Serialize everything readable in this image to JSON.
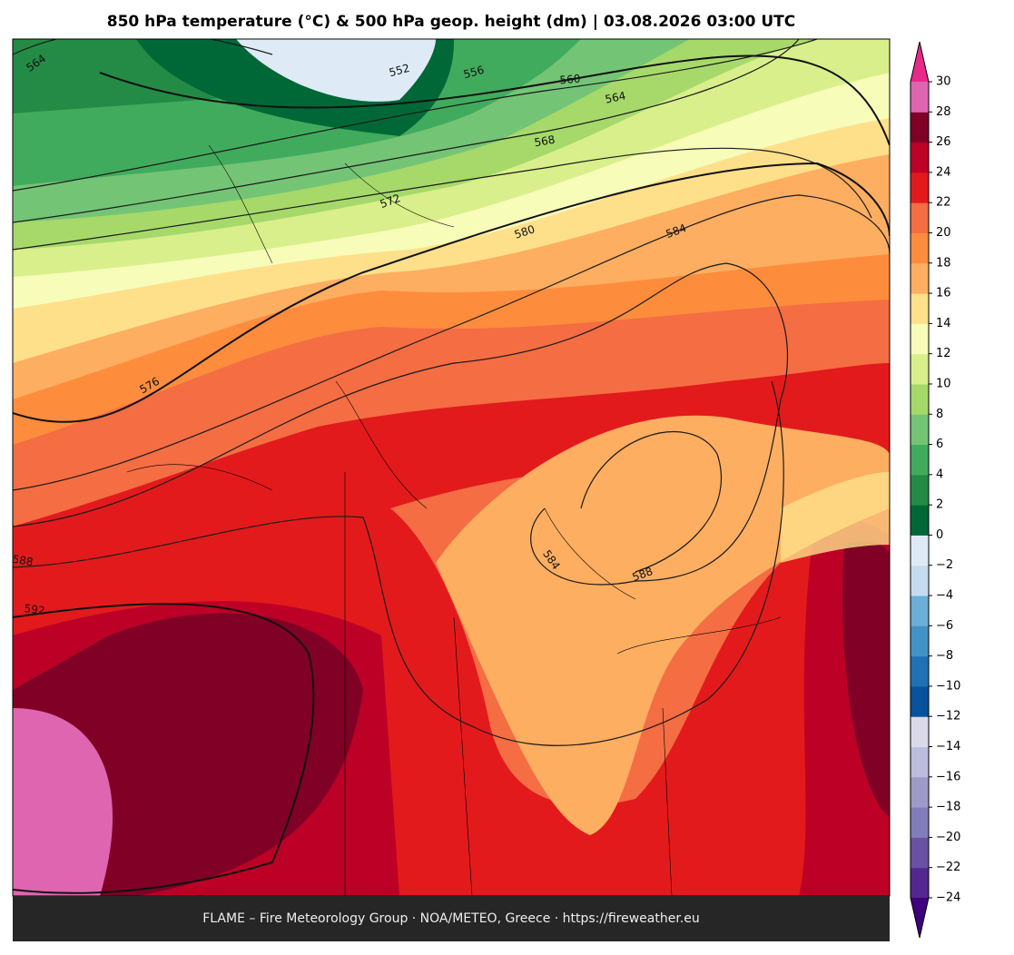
{
  "title": "850 hPa temperature (°C) & 500 hPa geop. height (dm)  |  03.08.2026 03:00 UTC",
  "footer": "FLAME – Fire Meteorology Group · NOA/METEO, Greece · https://fireweather.eu",
  "contour_labels": [
    564,
    552,
    556,
    560,
    564,
    568,
    572,
    580,
    584,
    576,
    588,
    592,
    584,
    588
  ],
  "colorbar": {
    "ticks": [
      {
        "value": -24,
        "label": "−24"
      },
      {
        "value": -22,
        "label": "−22"
      },
      {
        "value": -20,
        "label": "−20"
      },
      {
        "value": -18,
        "label": "−18"
      },
      {
        "value": -16,
        "label": "−16"
      },
      {
        "value": -14,
        "label": "−14"
      },
      {
        "value": -12,
        "label": "−12"
      },
      {
        "value": -10,
        "label": "−10"
      },
      {
        "value": -8,
        "label": "−8"
      },
      {
        "value": -6,
        "label": "−6"
      },
      {
        "value": -4,
        "label": "−4"
      },
      {
        "value": -2,
        "label": "−2"
      },
      0,
      2,
      4,
      6,
      8,
      10,
      12,
      14,
      16,
      18,
      20,
      22,
      24,
      26,
      28,
      30
    ],
    "colors": [
      "#54278f",
      "#6a51a3",
      "#807dba",
      "#9e9ac8",
      "#bcbddc",
      "#dadaeb",
      "#08519c",
      "#2171b5",
      "#4292c6",
      "#6baed6",
      "#c6dbef",
      "#deebf7",
      "#006837",
      "#238b45",
      "#41ab5d",
      "#74c476",
      "#a6d96a",
      "#d9ef8b",
      "#f7fcb9",
      "#fee08b",
      "#fdae61",
      "#fd8d3c",
      "#f46d43",
      "#e31a1c",
      "#bd0026",
      "#800026",
      "#df65b0"
    ],
    "extend_colors": [
      "#3f007d",
      "#e7298a"
    ]
  }
}
